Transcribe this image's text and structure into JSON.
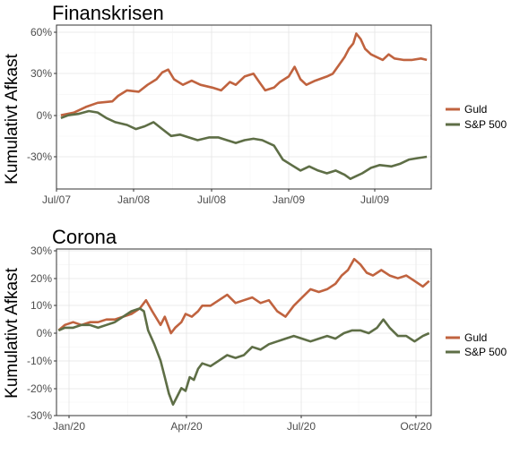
{
  "chart_data": [
    {
      "type": "line",
      "title": "Finanskrisen",
      "xlabel": "",
      "ylabel": "Kumulativt Afkast",
      "x_ticks": [
        "Jul/07",
        "Jan/08",
        "Jul/08",
        "Jan/09",
        "Jul/09"
      ],
      "y_ticks": [
        "-30%",
        "0%",
        "30%",
        "60%"
      ],
      "ylim": [
        -50,
        65
      ],
      "x_unit": "months since Jul/07",
      "xlim": [
        0,
        25.5
      ],
      "grid": true,
      "legend_position": "right",
      "series": [
        {
          "name": "Guld",
          "color": "#c0633f",
          "points": [
            [
              0.3,
              0
            ],
            [
              1.2,
              2
            ],
            [
              2,
              6
            ],
            [
              2.8,
              9
            ],
            [
              3.8,
              10
            ],
            [
              4.2,
              14
            ],
            [
              4.8,
              18
            ],
            [
              5.6,
              17
            ],
            [
              6.2,
              22
            ],
            [
              6.8,
              26
            ],
            [
              7.2,
              31
            ],
            [
              7.6,
              33
            ],
            [
              8,
              26
            ],
            [
              8.6,
              22
            ],
            [
              9.2,
              25
            ],
            [
              9.8,
              22
            ],
            [
              10.6,
              20
            ],
            [
              11.2,
              18
            ],
            [
              11.8,
              24
            ],
            [
              12.2,
              22
            ],
            [
              12.8,
              28
            ],
            [
              13.4,
              30
            ],
            [
              13.8,
              24
            ],
            [
              14.2,
              18
            ],
            [
              14.8,
              20
            ],
            [
              15.2,
              24
            ],
            [
              15.8,
              28
            ],
            [
              16.2,
              35
            ],
            [
              16.6,
              26
            ],
            [
              17,
              22
            ],
            [
              17.6,
              25
            ],
            [
              18.4,
              28
            ],
            [
              18.8,
              30
            ],
            [
              19.2,
              36
            ],
            [
              19.6,
              42
            ],
            [
              19.9,
              48
            ],
            [
              20.2,
              52
            ],
            [
              20.4,
              59
            ],
            [
              20.7,
              55
            ],
            [
              21,
              48
            ],
            [
              21.4,
              44
            ],
            [
              21.8,
              42
            ],
            [
              22.2,
              40
            ],
            [
              22.6,
              44
            ],
            [
              23,
              41
            ],
            [
              23.6,
              40
            ],
            [
              24.2,
              40
            ],
            [
              24.8,
              41
            ],
            [
              25.2,
              40
            ]
          ]
        },
        {
          "name": "S&P 500",
          "color": "#5e6e46",
          "points": [
            [
              0.3,
              -2
            ],
            [
              0.8,
              0
            ],
            [
              1.5,
              1
            ],
            [
              2.2,
              3
            ],
            [
              2.8,
              2
            ],
            [
              3.4,
              -2
            ],
            [
              4,
              -5
            ],
            [
              4.8,
              -7
            ],
            [
              5.4,
              -10
            ],
            [
              6,
              -8
            ],
            [
              6.6,
              -5
            ],
            [
              7.2,
              -10
            ],
            [
              7.8,
              -15
            ],
            [
              8.4,
              -14
            ],
            [
              9,
              -16
            ],
            [
              9.6,
              -18
            ],
            [
              10.4,
              -16
            ],
            [
              11,
              -16
            ],
            [
              11.6,
              -18
            ],
            [
              12.2,
              -20
            ],
            [
              12.8,
              -18
            ],
            [
              13.4,
              -17
            ],
            [
              14,
              -18
            ],
            [
              14.8,
              -22
            ],
            [
              15.4,
              -32
            ],
            [
              16,
              -36
            ],
            [
              16.6,
              -40
            ],
            [
              17.2,
              -37
            ],
            [
              17.8,
              -40
            ],
            [
              18.4,
              -42
            ],
            [
              19,
              -40
            ],
            [
              19.6,
              -43
            ],
            [
              20,
              -46
            ],
            [
              20.4,
              -44
            ],
            [
              20.8,
              -42
            ],
            [
              21.4,
              -38
            ],
            [
              22,
              -36
            ],
            [
              22.8,
              -37
            ],
            [
              23.4,
              -35
            ],
            [
              24,
              -32
            ],
            [
              24.6,
              -31
            ],
            [
              25.2,
              -30
            ]
          ]
        }
      ]
    },
    {
      "type": "line",
      "title": "Corona",
      "xlabel": "",
      "ylabel": "Kumulativt Afkast",
      "x_ticks": [
        "Jan/20",
        "Apr/20",
        "Jul/20",
        "Oct/20"
      ],
      "y_ticks": [
        "-30%",
        "-20%",
        "-10%",
        "0%",
        "10%",
        "20%",
        "30%"
      ],
      "ylim": [
        -30,
        30
      ],
      "x_unit": "months since Jan/20",
      "xlim": [
        0,
        9
      ],
      "grid": true,
      "legend_position": "right",
      "series": [
        {
          "name": "Guld",
          "color": "#c0633f",
          "points": [
            [
              0.05,
              1
            ],
            [
              0.2,
              3
            ],
            [
              0.4,
              4
            ],
            [
              0.6,
              3
            ],
            [
              0.8,
              4
            ],
            [
              1,
              4
            ],
            [
              1.2,
              5
            ],
            [
              1.4,
              5
            ],
            [
              1.6,
              6
            ],
            [
              1.8,
              7
            ],
            [
              2,
              9
            ],
            [
              2.15,
              12
            ],
            [
              2.3,
              8
            ],
            [
              2.5,
              3
            ],
            [
              2.6,
              6
            ],
            [
              2.75,
              0
            ],
            [
              2.85,
              2
            ],
            [
              3,
              4
            ],
            [
              3.1,
              7
            ],
            [
              3.25,
              6
            ],
            [
              3.4,
              8
            ],
            [
              3.5,
              10
            ],
            [
              3.7,
              10
            ],
            [
              3.9,
              12
            ],
            [
              4.1,
              14
            ],
            [
              4.3,
              11
            ],
            [
              4.5,
              12
            ],
            [
              4.7,
              13
            ],
            [
              4.9,
              11
            ],
            [
              5.1,
              12
            ],
            [
              5.3,
              8
            ],
            [
              5.5,
              6
            ],
            [
              5.7,
              10
            ],
            [
              5.9,
              13
            ],
            [
              6.1,
              16
            ],
            [
              6.3,
              15
            ],
            [
              6.5,
              16
            ],
            [
              6.7,
              18
            ],
            [
              6.85,
              21
            ],
            [
              7,
              23
            ],
            [
              7.15,
              27
            ],
            [
              7.3,
              25
            ],
            [
              7.45,
              22
            ],
            [
              7.6,
              21
            ],
            [
              7.8,
              23
            ],
            [
              8,
              21
            ],
            [
              8.2,
              20
            ],
            [
              8.4,
              21
            ],
            [
              8.6,
              19
            ],
            [
              8.8,
              17
            ],
            [
              8.95,
              19
            ]
          ]
        },
        {
          "name": "S&P 500",
          "color": "#5e6e46",
          "points": [
            [
              0.05,
              1
            ],
            [
              0.2,
              2
            ],
            [
              0.4,
              2
            ],
            [
              0.6,
              3
            ],
            [
              0.8,
              3
            ],
            [
              1,
              2
            ],
            [
              1.2,
              3
            ],
            [
              1.4,
              4
            ],
            [
              1.6,
              6
            ],
            [
              1.8,
              8
            ],
            [
              2,
              9
            ],
            [
              2.1,
              8
            ],
            [
              2.2,
              1
            ],
            [
              2.35,
              -4
            ],
            [
              2.5,
              -10
            ],
            [
              2.6,
              -16
            ],
            [
              2.7,
              -22
            ],
            [
              2.8,
              -26
            ],
            [
              2.9,
              -23
            ],
            [
              3,
              -20
            ],
            [
              3.1,
              -21
            ],
            [
              3.2,
              -16
            ],
            [
              3.3,
              -17
            ],
            [
              3.4,
              -13
            ],
            [
              3.5,
              -11
            ],
            [
              3.7,
              -12
            ],
            [
              3.9,
              -10
            ],
            [
              4.1,
              -8
            ],
            [
              4.3,
              -9
            ],
            [
              4.5,
              -8
            ],
            [
              4.7,
              -5
            ],
            [
              4.9,
              -6
            ],
            [
              5.1,
              -4
            ],
            [
              5.3,
              -3
            ],
            [
              5.5,
              -2
            ],
            [
              5.7,
              -1
            ],
            [
              5.9,
              -2
            ],
            [
              6.1,
              -3
            ],
            [
              6.3,
              -2
            ],
            [
              6.5,
              -1
            ],
            [
              6.7,
              -2
            ],
            [
              6.9,
              0
            ],
            [
              7.1,
              1
            ],
            [
              7.3,
              1
            ],
            [
              7.5,
              0
            ],
            [
              7.7,
              2
            ],
            [
              7.85,
              5
            ],
            [
              8,
              2
            ],
            [
              8.2,
              -1
            ],
            [
              8.4,
              -1
            ],
            [
              8.6,
              -3
            ],
            [
              8.8,
              -1
            ],
            [
              8.95,
              0
            ]
          ]
        }
      ]
    }
  ]
}
